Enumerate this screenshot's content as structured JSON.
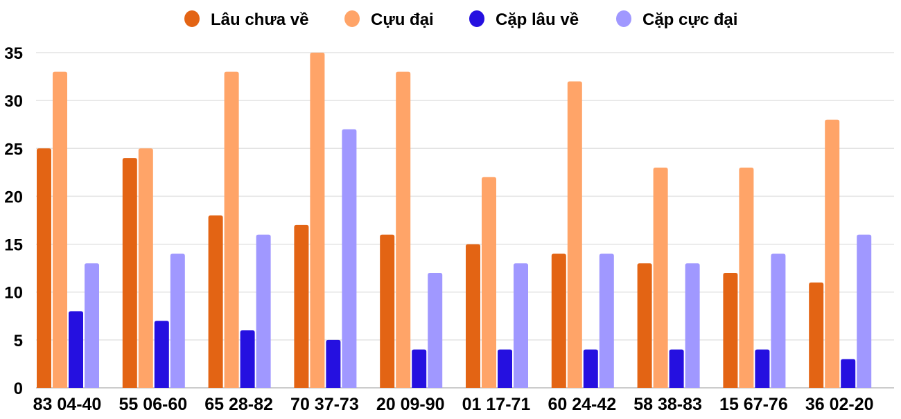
{
  "chart_data": {
    "type": "bar",
    "title": "",
    "xlabel": "",
    "ylabel": "",
    "ylim": [
      0,
      35
    ],
    "yticks": [
      0,
      5,
      10,
      15,
      20,
      25,
      30,
      35
    ],
    "grid": true,
    "legend_position": "top",
    "categories": [
      "83 04-40",
      "55 06-60",
      "65 28-82",
      "70 37-73",
      "20 09-90",
      "01 17-71",
      "60 24-42",
      "58 38-83",
      "15 67-76",
      "36 02-20"
    ],
    "series": [
      {
        "name": "Lâu chưa về",
        "color": "#E36414",
        "values": [
          25,
          24,
          18,
          17,
          16,
          15,
          14,
          13,
          12,
          11
        ]
      },
      {
        "name": "Cựu đại",
        "color": "#FFA468",
        "values": [
          33,
          25,
          33,
          35,
          33,
          22,
          32,
          23,
          23,
          28
        ]
      },
      {
        "name": "Cặp lâu về",
        "color": "#2510E0",
        "values": [
          8,
          7,
          6,
          5,
          4,
          4,
          4,
          4,
          4,
          3
        ]
      },
      {
        "name": "Cặp cực đại",
        "color": "#A098FF",
        "values": [
          13,
          14,
          16,
          27,
          12,
          13,
          14,
          13,
          14,
          16
        ]
      }
    ]
  }
}
